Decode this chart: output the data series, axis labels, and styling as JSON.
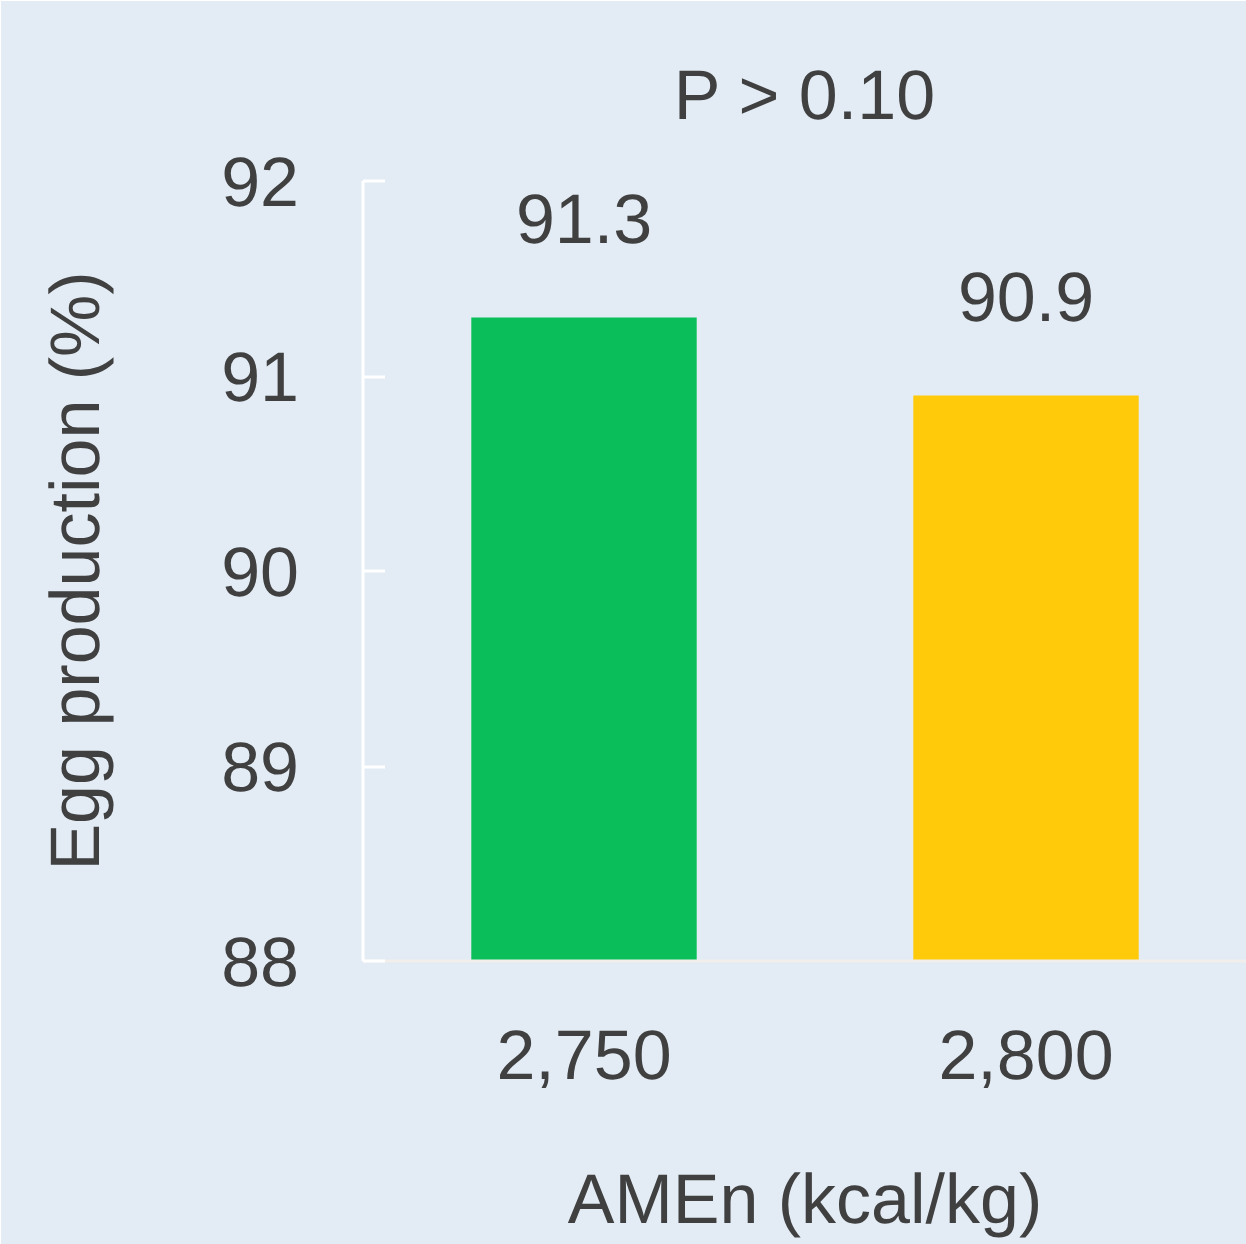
{
  "chart_data": {
    "type": "bar",
    "title": "P > 0.10",
    "xlabel": "AMEn (kcal/kg)",
    "ylabel": "Egg production (%)",
    "categories": [
      "2,750",
      "2,800"
    ],
    "values": [
      91.3,
      90.9
    ],
    "colors": [
      "#0abf5a",
      "#ffca0a"
    ],
    "ylim": [
      88,
      92
    ],
    "yticks": [
      88,
      89,
      90,
      91,
      92
    ],
    "grid": false,
    "data_labels": true
  }
}
